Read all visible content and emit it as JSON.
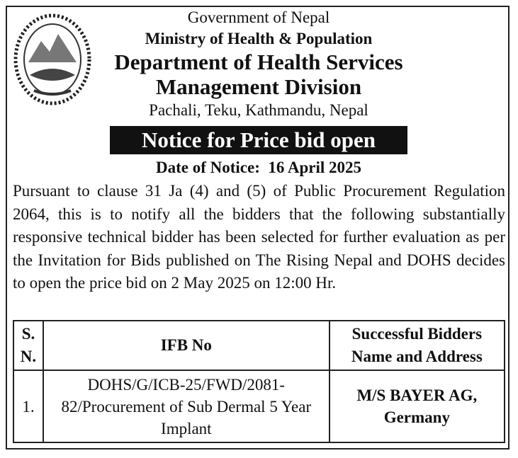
{
  "header": {
    "government": "Government of Nepal",
    "ministry": "Ministry of Health & Population",
    "department": "Department of Health Services",
    "division": "Management Division",
    "address": "Pachali, Teku, Kathmandu, Nepal"
  },
  "notice": {
    "title": "Notice for Price bid open",
    "date": "Date of Notice:  16 April 2025",
    "body": "Pursuant to clause 31 Ja (4) and (5) of Public Procurement Regulation 2064, this is to notify all the bidders that the following substantially responsive technical bidder has been selected for further evaluation as per the Invitation for Bids published on The Rising Nepal and DOHS decides to open the price bid on 2 May 2025 on 12:00 Hr."
  },
  "table": {
    "header": [
      "S. N.",
      "IFB No",
      "Successful Bidders Name and Address"
    ],
    "rows": [
      [
        "1.",
        "DOHS/G/ICB-25/FWD/2081-82/Procurement of  Sub Dermal 5 Year Implant",
        "M/S BAYER AG, Germany"
      ]
    ]
  }
}
